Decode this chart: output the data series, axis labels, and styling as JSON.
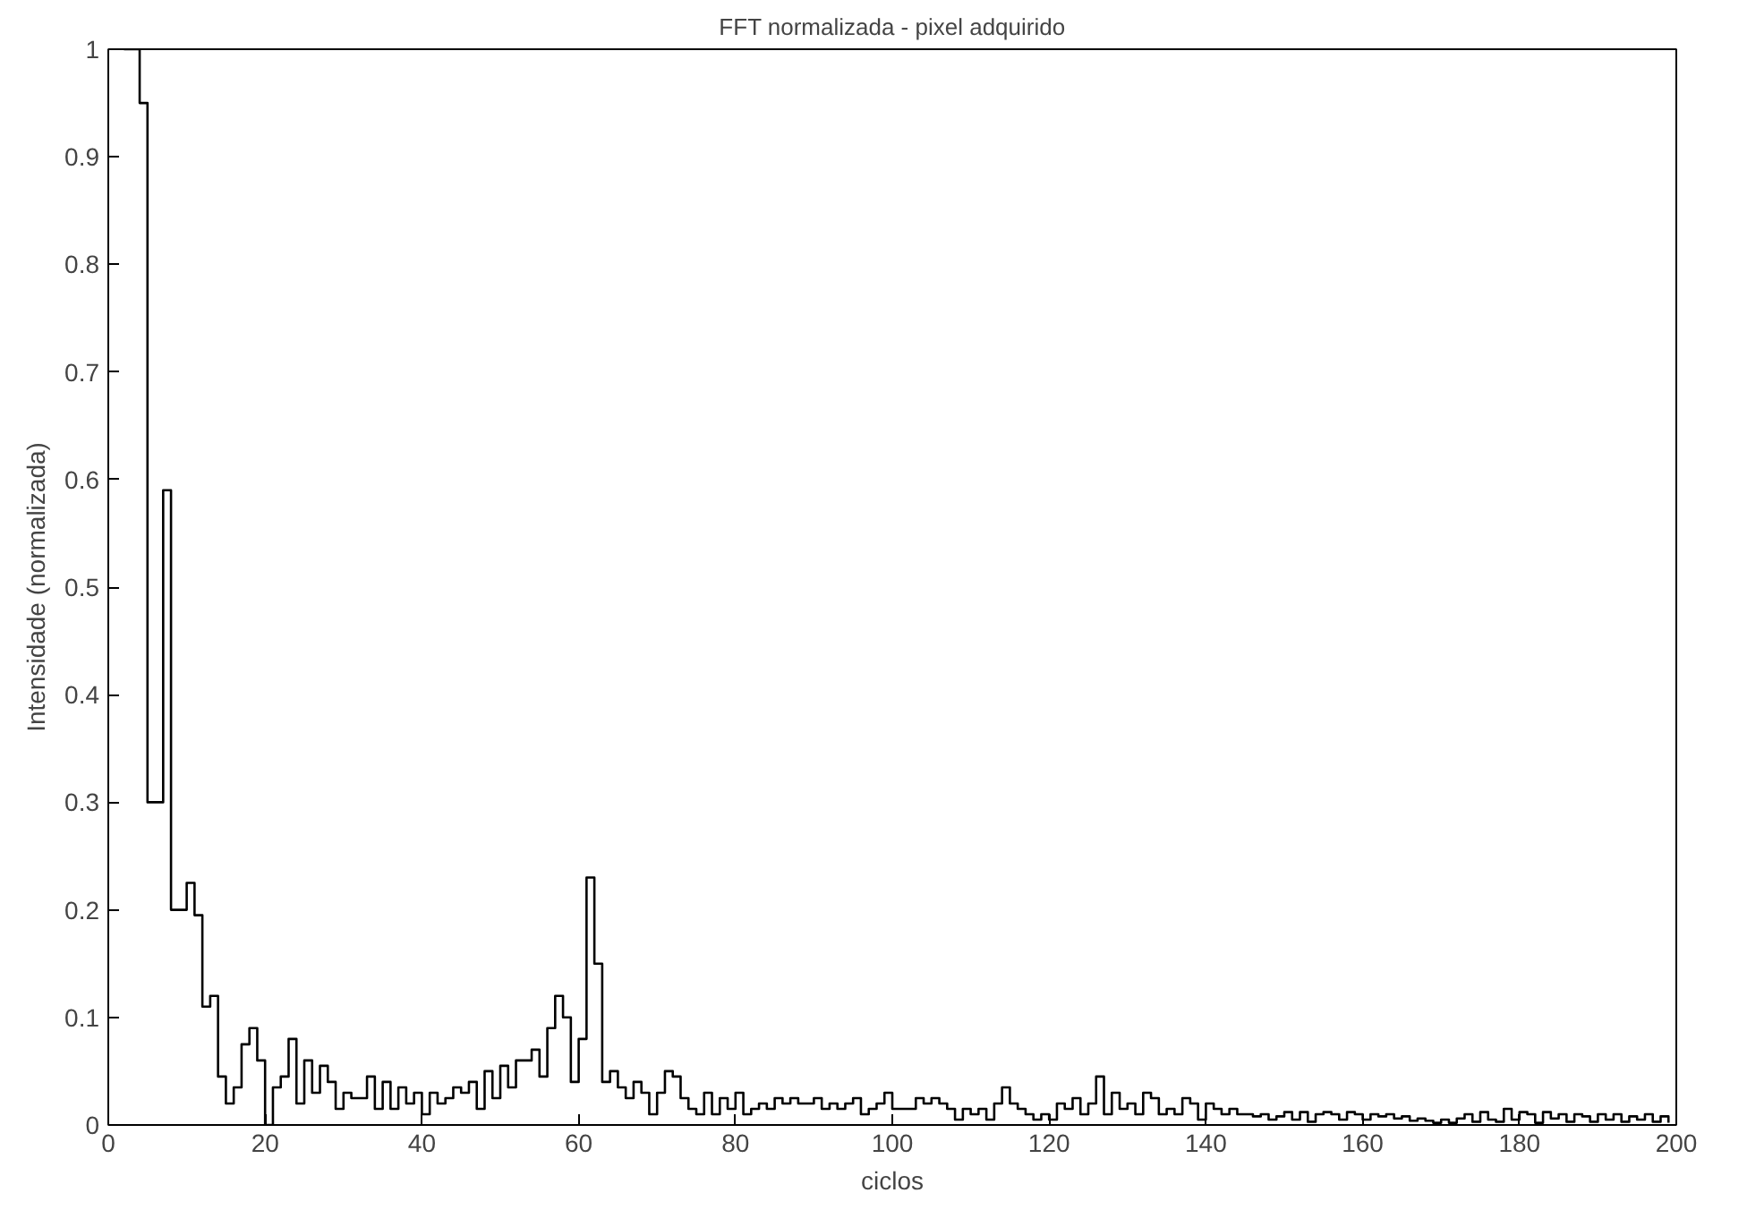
{
  "chart_data": {
    "type": "step",
    "title": "FFT normalizada - pixel adquirido",
    "xlabel": "ciclos",
    "ylabel": "Intensidade (normalizada)",
    "xlim": [
      0,
      200
    ],
    "ylim": [
      0,
      1
    ],
    "xticks": [
      0,
      20,
      40,
      60,
      80,
      100,
      120,
      140,
      160,
      180,
      200
    ],
    "yticks": [
      0,
      0.1,
      0.2,
      0.3,
      0.4,
      0.5,
      0.6,
      0.7,
      0.8,
      0.9,
      1
    ],
    "grid": false,
    "marker": "none",
    "line_style": "solid",
    "x": [
      2,
      3,
      4,
      5,
      6,
      7,
      8,
      9,
      10,
      11,
      12,
      13,
      14,
      15,
      16,
      17,
      18,
      19,
      20,
      21,
      22,
      23,
      24,
      25,
      26,
      27,
      28,
      29,
      30,
      31,
      32,
      33,
      34,
      35,
      36,
      37,
      38,
      39,
      40,
      41,
      42,
      43,
      44,
      45,
      46,
      47,
      48,
      49,
      50,
      51,
      52,
      53,
      54,
      55,
      56,
      57,
      58,
      59,
      60,
      61,
      62,
      63,
      64,
      65,
      66,
      67,
      68,
      69,
      70,
      71,
      72,
      73,
      74,
      75,
      76,
      77,
      78,
      79,
      80,
      81,
      82,
      83,
      84,
      85,
      86,
      87,
      88,
      89,
      90,
      91,
      92,
      93,
      94,
      95,
      96,
      97,
      98,
      99,
      100,
      101,
      102,
      103,
      104,
      105,
      106,
      107,
      108,
      109,
      110,
      111,
      112,
      113,
      114,
      115,
      116,
      117,
      118,
      119,
      120,
      121,
      122,
      123,
      124,
      125,
      126,
      127,
      128,
      129,
      130,
      131,
      132,
      133,
      134,
      135,
      136,
      137,
      138,
      139,
      140,
      141,
      142,
      143,
      144,
      145,
      146,
      147,
      148,
      149,
      150,
      151,
      152,
      153,
      154,
      155,
      156,
      157,
      158,
      159,
      160,
      161,
      162,
      163,
      164,
      165,
      166,
      167,
      168,
      169,
      170,
      171,
      172,
      173,
      174,
      175,
      176,
      177,
      178,
      179,
      180,
      181,
      182,
      183,
      184,
      185,
      186,
      187,
      188,
      189,
      190,
      191,
      192,
      193,
      194,
      195,
      196,
      197,
      198,
      199
    ],
    "series": [
      {
        "color": "#000000",
        "values": [
          1.0,
          1.0,
          0.95,
          0.3,
          0.3,
          0.59,
          0.2,
          0.2,
          0.225,
          0.195,
          0.11,
          0.12,
          0.045,
          0.02,
          0.035,
          0.075,
          0.09,
          0.06,
          0.0,
          0.035,
          0.045,
          0.08,
          0.02,
          0.06,
          0.03,
          0.055,
          0.04,
          0.015,
          0.03,
          0.025,
          0.025,
          0.045,
          0.015,
          0.04,
          0.015,
          0.035,
          0.02,
          0.03,
          0.01,
          0.03,
          0.02,
          0.025,
          0.035,
          0.03,
          0.04,
          0.015,
          0.05,
          0.025,
          0.055,
          0.035,
          0.06,
          0.06,
          0.07,
          0.045,
          0.09,
          0.12,
          0.1,
          0.04,
          0.08,
          0.23,
          0.15,
          0.04,
          0.05,
          0.035,
          0.025,
          0.04,
          0.03,
          0.01,
          0.03,
          0.05,
          0.045,
          0.025,
          0.015,
          0.01,
          0.03,
          0.01,
          0.025,
          0.015,
          0.03,
          0.01,
          0.015,
          0.02,
          0.015,
          0.025,
          0.02,
          0.025,
          0.02,
          0.02,
          0.025,
          0.015,
          0.02,
          0.015,
          0.02,
          0.025,
          0.01,
          0.015,
          0.02,
          0.03,
          0.015,
          0.015,
          0.015,
          0.025,
          0.02,
          0.025,
          0.02,
          0.015,
          0.005,
          0.015,
          0.01,
          0.015,
          0.005,
          0.02,
          0.035,
          0.02,
          0.015,
          0.01,
          0.005,
          0.01,
          0.005,
          0.02,
          0.015,
          0.025,
          0.01,
          0.02,
          0.045,
          0.01,
          0.03,
          0.015,
          0.02,
          0.01,
          0.03,
          0.025,
          0.01,
          0.015,
          0.01,
          0.025,
          0.02,
          0.005,
          0.02,
          0.015,
          0.01,
          0.015,
          0.01,
          0.01,
          0.008,
          0.01,
          0.005,
          0.008,
          0.012,
          0.005,
          0.012,
          0.003,
          0.01,
          0.012,
          0.01,
          0.005,
          0.012,
          0.01,
          0.005,
          0.01,
          0.008,
          0.01,
          0.006,
          0.008,
          0.004,
          0.006,
          0.004,
          0.002,
          0.005,
          0.002,
          0.006,
          0.01,
          0.003,
          0.012,
          0.005,
          0.003,
          0.015,
          0.005,
          0.012,
          0.01,
          0.002,
          0.012,
          0.006,
          0.01,
          0.003,
          0.01,
          0.008,
          0.003,
          0.01,
          0.005,
          0.01,
          0.003,
          0.008,
          0.005,
          0.01,
          0.003,
          0.008,
          0.002
        ]
      }
    ]
  }
}
